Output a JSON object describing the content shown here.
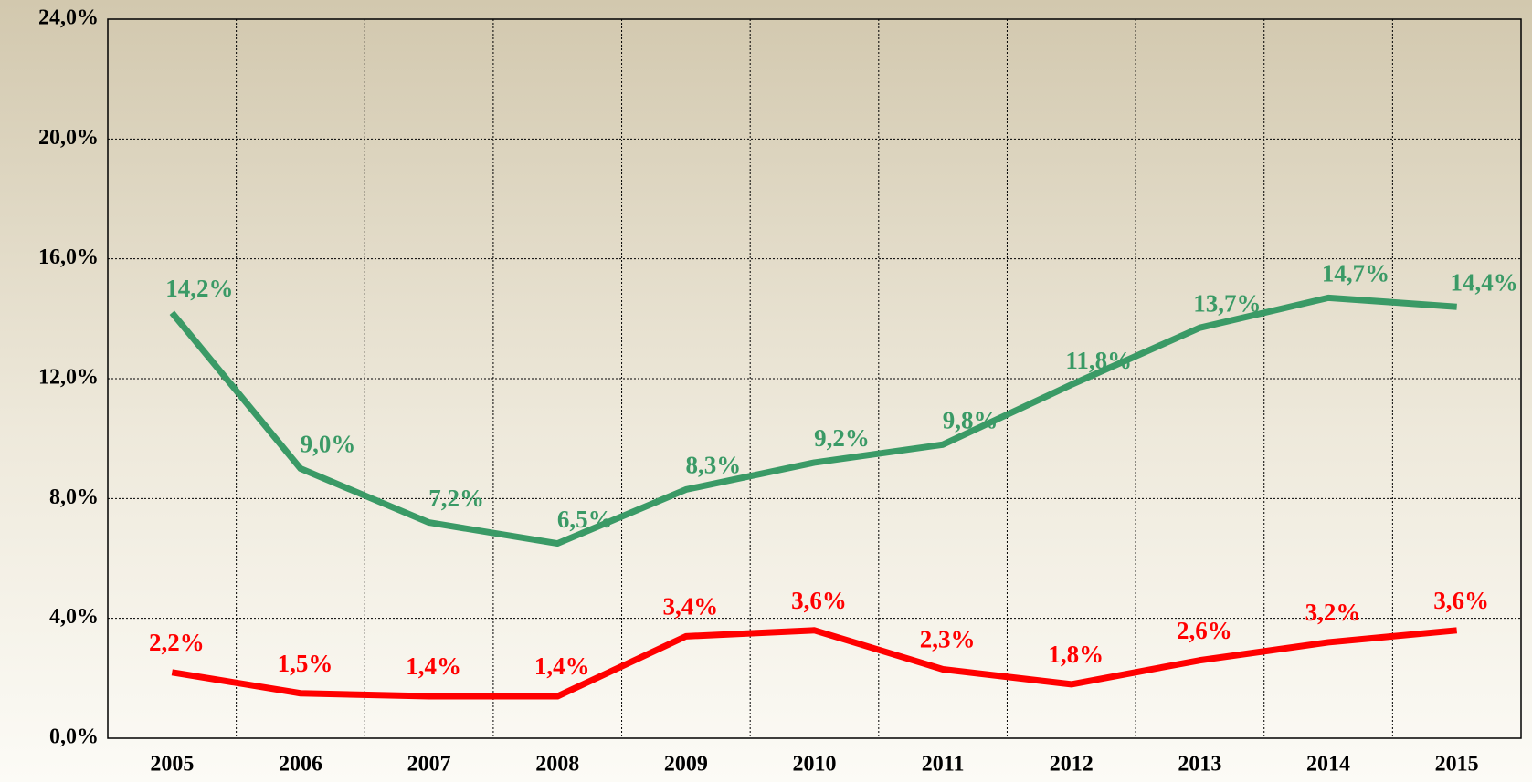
{
  "chart_data": {
    "type": "line",
    "categories": [
      "2005",
      "2006",
      "2007",
      "2008",
      "2009",
      "2010",
      "2011",
      "2012",
      "2013",
      "2014",
      "2015"
    ],
    "series": [
      {
        "color": "#3a9a66",
        "values": [
          14.2,
          9.0,
          7.2,
          6.5,
          8.3,
          9.2,
          9.8,
          11.8,
          13.7,
          14.7,
          14.4
        ],
        "value_labels": [
          "14,2%",
          "9,0%",
          "7,2%",
          "6,5%",
          "8,3%",
          "9,2%",
          "9,8%",
          "11,8%",
          "13,7%",
          "14,7%",
          "14,4%"
        ]
      },
      {
        "color": "#ff0000",
        "values": [
          2.2,
          1.5,
          1.4,
          1.4,
          3.4,
          3.6,
          2.3,
          1.8,
          2.6,
          3.2,
          3.6
        ],
        "value_labels": [
          "2,2%",
          "1,5%",
          "1,4%",
          "1,4%",
          "3,4%",
          "3,6%",
          "2,3%",
          "1,8%",
          "2,6%",
          "3,2%",
          "3,6%"
        ]
      }
    ],
    "ylim": [
      0,
      24
    ],
    "yticks": [
      {
        "value": 0,
        "label": "0,0%"
      },
      {
        "value": 4,
        "label": "4,0%"
      },
      {
        "value": 8,
        "label": "8,0%"
      },
      {
        "value": 12,
        "label": "12,0%"
      },
      {
        "value": 16,
        "label": "16,0%"
      },
      {
        "value": 20,
        "label": "20,0%"
      },
      {
        "value": 24,
        "label": "24,0%"
      }
    ],
    "grid": true
  }
}
